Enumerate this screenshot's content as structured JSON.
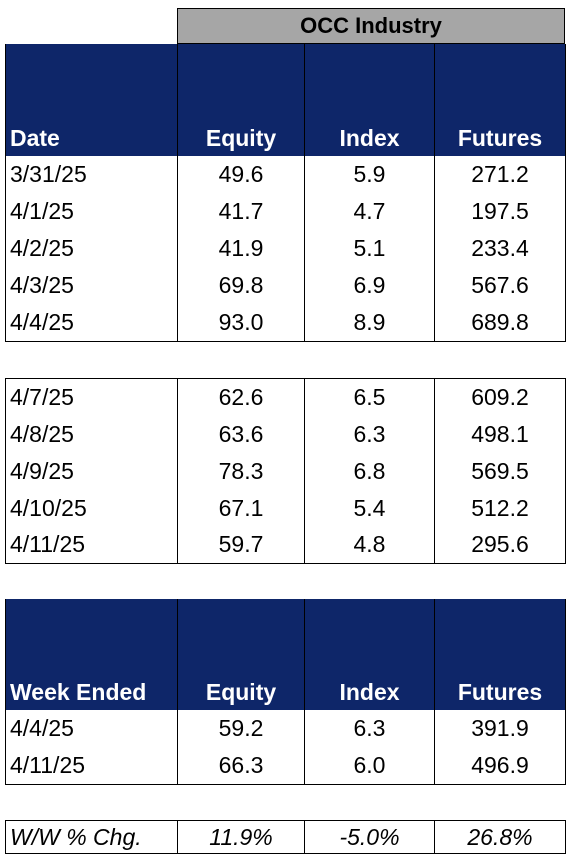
{
  "header": {
    "group_title": "OCC Industry"
  },
  "daily_columns": [
    "Date",
    "Equity",
    "Index",
    "Futures"
  ],
  "week1": [
    [
      "3/31/25",
      "49.6",
      "5.9",
      "271.2"
    ],
    [
      "4/1/25",
      "41.7",
      "4.7",
      "197.5"
    ],
    [
      "4/2/25",
      "41.9",
      "5.1",
      "233.4"
    ],
    [
      "4/3/25",
      "69.8",
      "6.9",
      "567.6"
    ],
    [
      "4/4/25",
      "93.0",
      "8.9",
      "689.8"
    ]
  ],
  "week2": [
    [
      "4/7/25",
      "62.6",
      "6.5",
      "609.2"
    ],
    [
      "4/8/25",
      "63.6",
      "6.3",
      "498.1"
    ],
    [
      "4/9/25",
      "78.3",
      "6.8",
      "569.5"
    ],
    [
      "4/10/25",
      "67.1",
      "5.4",
      "512.2"
    ],
    [
      "4/11/25",
      "59.7",
      "4.8",
      "295.6"
    ]
  ],
  "weekly_columns": [
    "Week Ended",
    "Equity",
    "Index",
    "Futures"
  ],
  "weekly": [
    [
      "4/4/25",
      "59.2",
      "6.3",
      "391.9"
    ],
    [
      "4/11/25",
      "66.3",
      "6.0",
      "496.9"
    ]
  ],
  "change": [
    "W/W % Chg.",
    "11.9%",
    "-5.0%",
    "26.8%"
  ]
}
